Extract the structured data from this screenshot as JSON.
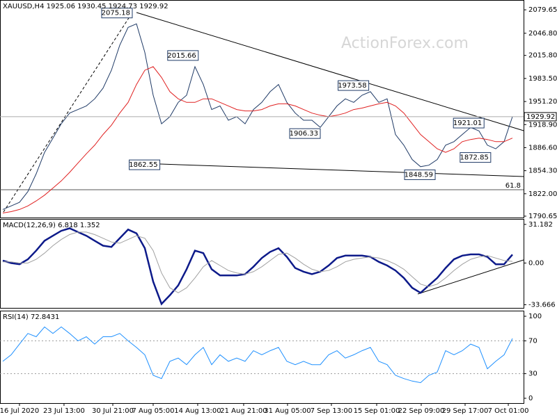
{
  "chart_data": [
    {
      "type": "line",
      "title": "XAUUSD,H4  1925.06 1930.45 1924.73 1929.92",
      "watermark": "ActionForex.com",
      "x": [
        0,
        1,
        2,
        3,
        4,
        5,
        6,
        7,
        8,
        9,
        10,
        11,
        12,
        13,
        14,
        15,
        16,
        17,
        18,
        19,
        20,
        21,
        22,
        23,
        24,
        25,
        26,
        27,
        28,
        29,
        30,
        31,
        32,
        33,
        34,
        35,
        36,
        37,
        38,
        39,
        40,
        41,
        42,
        43,
        44,
        45,
        46,
        47,
        48,
        49,
        50,
        51,
        52,
        53,
        54,
        55,
        56,
        57,
        58,
        59,
        60,
        61
      ],
      "xlim": [
        -0.33,
        62.33
      ],
      "ylim": [
        1788.7,
        2093.4
      ],
      "yticks": [
        2079.65,
        {
          "value": 2046.8,
          "label": "2046.80"
        },
        {
          "value": 2015.8,
          "label": "2015.80"
        },
        {
          "value": 1983.5,
          "label": "1983.50"
        },
        {
          "value": 1951.2,
          "label": "1951.20"
        },
        {
          "value": 1918.9,
          "label": "1918.90"
        },
        {
          "value": 1886.6,
          "label": "1886.60"
        },
        {
          "value": 1854.3,
          "label": "1854.30"
        },
        {
          "value": 1822,
          "label": "1822.00"
        },
        1790.65
      ],
      "series": [
        {
          "color": "#1f3a66",
          "values": [
            1800,
            1805,
            1810,
            1825,
            1850,
            1880,
            1900,
            1920,
            1935,
            1940,
            1945,
            1955,
            1970,
            1995,
            2030,
            2055,
            2060,
            2020,
            1960,
            1920,
            1930,
            1950,
            1960,
            2000,
            1975,
            1940,
            1945,
            1925,
            1930,
            1920,
            1940,
            1950,
            1965,
            1975,
            1950,
            1935,
            1925,
            1925,
            1915,
            1930,
            1945,
            1955,
            1950,
            1960,
            1965,
            1950,
            1955,
            1905,
            1890,
            1870,
            1860,
            1862,
            1870,
            1890,
            1895,
            1905,
            1915,
            1910,
            1890,
            1885,
            1895,
            1929.92
          ]
        },
        {
          "color": "#e02020",
          "values": [
            1795,
            1797,
            1800,
            1805,
            1812,
            1820,
            1830,
            1840,
            1852,
            1865,
            1878,
            1890,
            1905,
            1918,
            1935,
            1950,
            1975,
            1995,
            2000,
            1985,
            1965,
            1955,
            1950,
            1950,
            1955,
            1955,
            1950,
            1945,
            1940,
            1938,
            1938,
            1940,
            1945,
            1948,
            1948,
            1945,
            1940,
            1935,
            1932,
            1930,
            1932,
            1935,
            1940,
            1942,
            1945,
            1948,
            1950,
            1945,
            1935,
            1920,
            1905,
            1895,
            1885,
            1880,
            1885,
            1895,
            1898,
            1900,
            1898,
            1895,
            1895,
            1900
          ]
        }
      ],
      "annotations": [
        {
          "x": 15.5,
          "value": 2075.18
        },
        {
          "x": 23.4,
          "value": 2015.66
        },
        {
          "x": 18.8,
          "value": 1862.55
        },
        {
          "x": 38,
          "value": 1906.33
        },
        {
          "x": 43.8,
          "value": 1973.58
        },
        {
          "x": 51.75,
          "value": 1848.59
        },
        {
          "x": 57.6,
          "value": 1921.01
        },
        {
          "x": 58.4,
          "value": 1872.85
        }
      ],
      "hlines": [
        {
          "value": 1827.6,
          "label": "61.8"
        }
      ]
    },
    {
      "type": "line",
      "title": "MACD(12,26,9) 6.818 1.352",
      "x": [
        0,
        1,
        2,
        3,
        4,
        5,
        6,
        7,
        8,
        9,
        10,
        11,
        12,
        13,
        14,
        15,
        16,
        17,
        18,
        19,
        20,
        21,
        22,
        23,
        24,
        25,
        26,
        27,
        28,
        29,
        30,
        31,
        32,
        33,
        34,
        35,
        36,
        37,
        38,
        39,
        40,
        41,
        42,
        43,
        44,
        45,
        46,
        47,
        48,
        49,
        50,
        51,
        52,
        53,
        54,
        55,
        56,
        57,
        58,
        59,
        60,
        61
      ],
      "xlim": [
        -0.33,
        62.33
      ],
      "ylim": [
        -36.2,
        35.6
      ],
      "yticks": [
        31.182,
        {
          "value": 0,
          "label": "0.00"
        },
        -33.666
      ],
      "series": [
        {
          "color": "#0d1a8a",
          "values": [
            2,
            0,
            -1,
            3,
            10,
            18,
            22,
            26,
            28,
            25,
            22,
            18,
            14,
            13,
            20,
            27,
            24,
            12,
            -15,
            -33,
            -26,
            -18,
            -5,
            10,
            8,
            -5,
            -10,
            -10,
            -10,
            -9,
            -3,
            4,
            9,
            12,
            5,
            -4,
            -7,
            -9,
            -7,
            -2,
            4,
            6,
            6,
            6,
            5,
            1,
            -2,
            -6,
            -12,
            -20,
            -24,
            -18,
            -12,
            -4,
            3,
            6,
            7,
            7,
            5,
            -1,
            -1,
            6.818
          ]
        },
        {
          "color": "#a0a0a0",
          "values": [
            1,
            1,
            0,
            0,
            3,
            8,
            14,
            19,
            23,
            25,
            25,
            23,
            20,
            17,
            16,
            19,
            22,
            20,
            10,
            -8,
            -20,
            -24,
            -20,
            -12,
            -3,
            2,
            -2,
            -6,
            -8,
            -9,
            -7,
            -3,
            2,
            7,
            8,
            4,
            -1,
            -5,
            -7,
            -6,
            -3,
            1,
            3,
            4,
            5,
            4,
            2,
            -1,
            -5,
            -11,
            -17,
            -19,
            -17,
            -12,
            -6,
            -1,
            3,
            5,
            6,
            4,
            2,
            1.352
          ]
        }
      ]
    },
    {
      "type": "line",
      "title": "RSI(14) 72.8431",
      "x": [
        0,
        1,
        2,
        3,
        4,
        5,
        6,
        7,
        8,
        9,
        10,
        11,
        12,
        13,
        14,
        15,
        16,
        17,
        18,
        19,
        20,
        21,
        22,
        23,
        24,
        25,
        26,
        27,
        28,
        29,
        30,
        31,
        32,
        33,
        34,
        35,
        36,
        37,
        38,
        39,
        40,
        41,
        42,
        43,
        44,
        45,
        46,
        47,
        48,
        49,
        50,
        51,
        52,
        53,
        54,
        55,
        56,
        57,
        58,
        59,
        60,
        61
      ],
      "xlim": [
        -0.33,
        62.33
      ],
      "ylim": [
        -5.9,
        106.8
      ],
      "yticks": [
        100,
        70,
        30,
        0
      ],
      "levels": [
        70,
        30
      ],
      "xticks": [
        {
          "value": 2,
          "label": "16 Jul 2020"
        },
        {
          "value": 7.33,
          "label": "23 Jul 13:00"
        },
        {
          "value": 13.17,
          "label": "30 Jul 21:00"
        },
        {
          "value": 18,
          "label": "7 Aug 05:00"
        },
        {
          "value": 23.33,
          "label": "14 Aug 13:00"
        },
        {
          "value": 28.83,
          "label": "21 Aug 21:00"
        },
        {
          "value": 34.08,
          "label": "31 Aug 05:00"
        },
        {
          "value": 39.33,
          "label": "7 Sep 13:00"
        },
        {
          "value": 44.75,
          "label": "15 Sep 01:00"
        },
        {
          "value": 50.08,
          "label": "22 Sep 09:00"
        },
        {
          "value": 55.33,
          "label": "29 Sep 17:00"
        },
        {
          "value": 60.5,
          "label": "7 Oct 01:00"
        }
      ],
      "series": [
        {
          "color": "#1e90ff",
          "values": [
            45,
            53,
            66,
            79,
            75,
            87,
            79,
            87,
            79,
            70,
            75,
            66,
            75,
            75,
            79,
            70,
            62,
            53,
            28,
            24,
            45,
            49,
            41,
            53,
            62,
            41,
            53,
            45,
            49,
            45,
            58,
            53,
            58,
            62,
            45,
            41,
            45,
            41,
            41,
            53,
            58,
            49,
            53,
            58,
            62,
            45,
            41,
            28,
            24,
            21,
            19,
            28,
            32,
            58,
            53,
            58,
            66,
            62,
            36,
            45,
            53,
            72.8431
          ]
        }
      ]
    }
  ]
}
